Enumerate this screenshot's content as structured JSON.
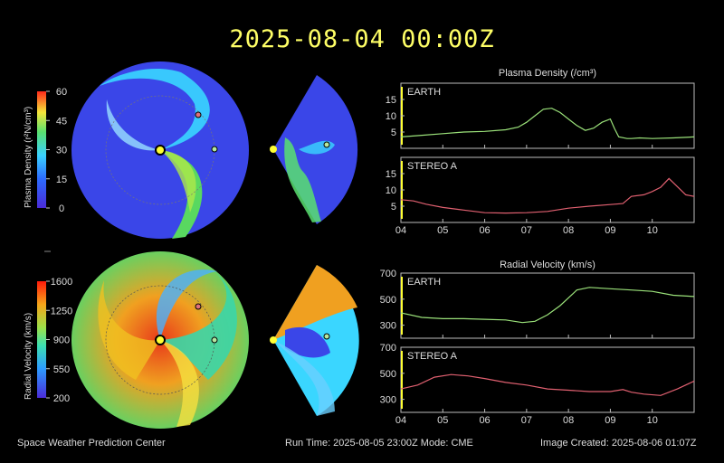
{
  "title": "2025-08-04  00:00Z",
  "footer": {
    "left": "Space Weather Prediction Center",
    "middle": "Run Time: 2025-08-05 23:00Z  Mode: CME",
    "right": "Image Created: 2025-08-06 01:07Z"
  },
  "colorbars": {
    "density": {
      "label": "Plasma Density (r²N/cm³)",
      "ticks": [
        "60",
        "45",
        "30",
        "15",
        "0"
      ]
    },
    "velocity": {
      "label": "Radial Velocity (km/s)",
      "ticks": [
        "1600",
        "1250",
        "900",
        "550",
        "200"
      ]
    }
  },
  "colors": {
    "earth_line": "#9be27a",
    "stereo_line": "#e06070",
    "earth_marker": "#b6e8a0",
    "stereo_marker": "#e0707a",
    "sun": "#ffff33",
    "title": "#ffff66"
  },
  "chart_data": [
    {
      "type": "line",
      "title": "Plasma Density (/cm³)",
      "x_ticks": [
        "04",
        "05",
        "06",
        "07",
        "08",
        "09",
        "10"
      ],
      "xlim": [
        0,
        7
      ],
      "panels": [
        {
          "label": "EARTH",
          "ylim": [
            0,
            20
          ],
          "y_ticks": [
            "15",
            "10",
            "5"
          ],
          "x": [
            0,
            0.5,
            1,
            1.5,
            2,
            2.5,
            2.8,
            3,
            3.2,
            3.4,
            3.6,
            3.8,
            4,
            4.2,
            4.4,
            4.6,
            4.8,
            5,
            5.1,
            5.2,
            5.4,
            5.5,
            5.7,
            6,
            6.5,
            7
          ],
          "y": [
            3.5,
            4,
            4.5,
            5,
            5.2,
            5.7,
            6.5,
            8,
            10,
            12,
            12.3,
            11,
            9,
            7,
            5.5,
            6.2,
            8,
            9,
            6,
            3.5,
            3,
            3,
            3.2,
            3,
            3.2,
            3.5
          ]
        },
        {
          "label": "STEREO A",
          "ylim": [
            0,
            20
          ],
          "y_ticks": [
            "15",
            "10",
            "5"
          ],
          "x": [
            0,
            0.3,
            0.6,
            1,
            1.5,
            2,
            2.5,
            3,
            3.5,
            4,
            4.5,
            5,
            5.3,
            5.5,
            5.8,
            6,
            6.2,
            6.4,
            6.6,
            6.8,
            7
          ],
          "y": [
            7,
            6.6,
            5.6,
            4.6,
            3.8,
            3,
            2.9,
            3,
            3.4,
            4.4,
            5,
            5.5,
            5.8,
            8,
            8.5,
            9.5,
            10.8,
            13.5,
            11,
            8.5,
            8
          ]
        }
      ]
    },
    {
      "type": "line",
      "title": "Radial Velocity (km/s)",
      "x_ticks": [
        "04",
        "05",
        "06",
        "07",
        "08",
        "09",
        "10"
      ],
      "xlim": [
        0,
        7
      ],
      "panels": [
        {
          "label": "EARTH",
          "ylim": [
            200,
            700
          ],
          "y_ticks": [
            "700",
            "500",
            "300"
          ],
          "x": [
            0,
            0.5,
            1,
            1.5,
            2,
            2.5,
            2.9,
            3.2,
            3.5,
            3.8,
            4,
            4.2,
            4.5,
            5,
            5.5,
            6,
            6.5,
            7
          ],
          "y": [
            395,
            360,
            350,
            350,
            345,
            340,
            320,
            330,
            380,
            450,
            510,
            570,
            590,
            580,
            570,
            560,
            530,
            520
          ]
        },
        {
          "label": "STEREO A",
          "ylim": [
            200,
            700
          ],
          "y_ticks": [
            "700",
            "500",
            "300"
          ],
          "x": [
            0,
            0.4,
            0.8,
            1.2,
            1.6,
            2,
            2.5,
            3,
            3.5,
            4,
            4.5,
            5,
            5.3,
            5.5,
            5.8,
            6.2,
            6.6,
            7
          ],
          "y": [
            380,
            410,
            470,
            490,
            480,
            460,
            430,
            410,
            380,
            370,
            360,
            360,
            375,
            355,
            340,
            330,
            380,
            440
          ]
        }
      ]
    }
  ]
}
